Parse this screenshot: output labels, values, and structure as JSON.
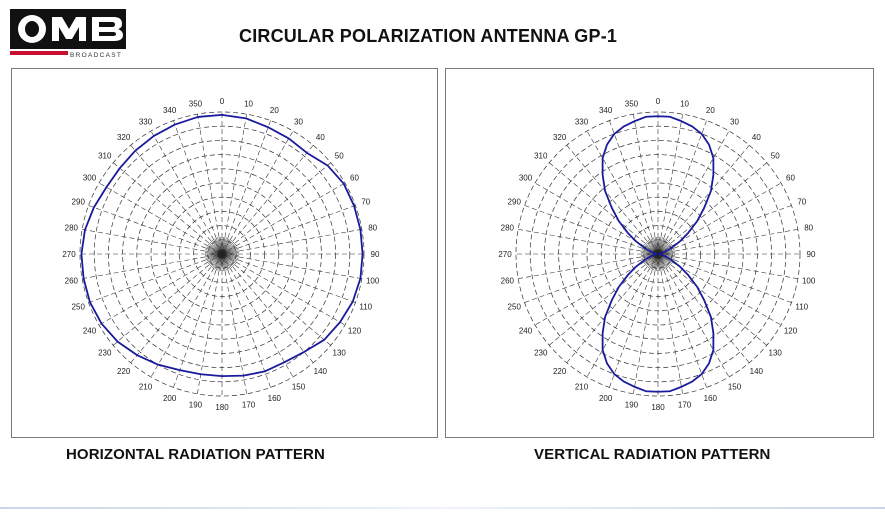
{
  "header": {
    "logo_text": "OMB",
    "logo_sub": "BROADCAST",
    "title": "CIRCULAR POLARIZATION ANTENNA GP-1"
  },
  "chart_data": [
    {
      "type": "polar",
      "caption": "HORIZONTAL RADIATION PATTERN",
      "angle_labels": [
        "0",
        "10",
        "20",
        "30",
        "40",
        "50",
        "60",
        "70",
        "80",
        "90",
        "100",
        "110",
        "120",
        "130",
        "140",
        "150",
        "160",
        "170",
        "180",
        "190",
        "200",
        "210",
        "220",
        "230",
        "240",
        "250",
        "260",
        "270",
        "280",
        "290",
        "300",
        "310",
        "320",
        "330",
        "340",
        "350"
      ],
      "radial_max": 1.0,
      "radial_rings": 10,
      "grid": true,
      "series": [
        {
          "theta_deg": [
            0,
            10,
            20,
            30,
            40,
            50,
            60,
            70,
            80,
            90,
            100,
            110,
            120,
            130,
            140,
            150,
            160,
            170,
            180,
            190,
            200,
            210,
            220,
            230,
            240,
            250,
            260,
            270,
            280,
            290,
            300,
            310,
            320,
            330,
            340,
            350
          ],
          "r": [
            0.98,
            0.97,
            0.95,
            0.94,
            0.93,
            0.97,
            0.99,
            0.99,
            0.99,
            0.99,
            0.99,
            0.98,
            0.96,
            0.94,
            0.9,
            0.88,
            0.88,
            0.87,
            0.86,
            0.86,
            0.87,
            0.9,
            0.93,
            0.96,
            0.98,
            0.99,
            0.99,
            0.99,
            0.98,
            0.96,
            0.94,
            0.94,
            0.95,
            0.96,
            0.97,
            0.98
          ],
          "color": "#1a1a9c"
        }
      ]
    },
    {
      "type": "polar",
      "caption": "VERTICAL RADIATION PATTERN",
      "angle_labels": [
        "0",
        "10",
        "20",
        "30",
        "40",
        "50",
        "60",
        "70",
        "80",
        "90",
        "100",
        "110",
        "120",
        "130",
        "140",
        "150",
        "160",
        "170",
        "180",
        "190",
        "200",
        "210",
        "220",
        "230",
        "240",
        "250",
        "260",
        "270",
        "280",
        "290",
        "300",
        "310",
        "320",
        "330",
        "340",
        "350"
      ],
      "radial_max": 1.0,
      "radial_rings": 10,
      "grid": true,
      "series": [
        {
          "theta_deg": [
            0,
            5,
            10,
            15,
            20,
            25,
            30,
            35,
            40,
            45,
            50,
            55,
            60,
            65,
            70,
            75,
            80,
            85,
            90,
            95,
            100,
            105,
            110,
            115,
            120,
            125,
            130,
            135,
            140,
            145,
            150,
            155,
            160,
            165,
            170,
            175,
            180,
            185,
            190,
            195,
            200,
            205,
            210,
            215,
            220,
            225,
            230,
            235,
            240,
            245,
            250,
            255,
            260,
            265,
            270,
            275,
            280,
            285,
            290,
            295,
            300,
            305,
            310,
            315,
            320,
            325,
            330,
            335,
            340,
            345,
            350,
            355
          ],
          "r": [
            0.97,
            0.97,
            0.95,
            0.93,
            0.9,
            0.85,
            0.78,
            0.68,
            0.58,
            0.46,
            0.36,
            0.26,
            0.18,
            0.11,
            0.07,
            0.04,
            0.02,
            0.01,
            0.01,
            0.01,
            0.02,
            0.04,
            0.07,
            0.11,
            0.18,
            0.26,
            0.36,
            0.46,
            0.58,
            0.68,
            0.78,
            0.85,
            0.9,
            0.93,
            0.95,
            0.97,
            0.97,
            0.97,
            0.95,
            0.93,
            0.9,
            0.85,
            0.78,
            0.68,
            0.58,
            0.46,
            0.36,
            0.26,
            0.18,
            0.11,
            0.07,
            0.04,
            0.02,
            0.01,
            0.01,
            0.01,
            0.02,
            0.04,
            0.07,
            0.11,
            0.18,
            0.26,
            0.36,
            0.46,
            0.58,
            0.68,
            0.78,
            0.85,
            0.9,
            0.93,
            0.95,
            0.97
          ],
          "color": "#1a1a9c"
        }
      ]
    }
  ]
}
